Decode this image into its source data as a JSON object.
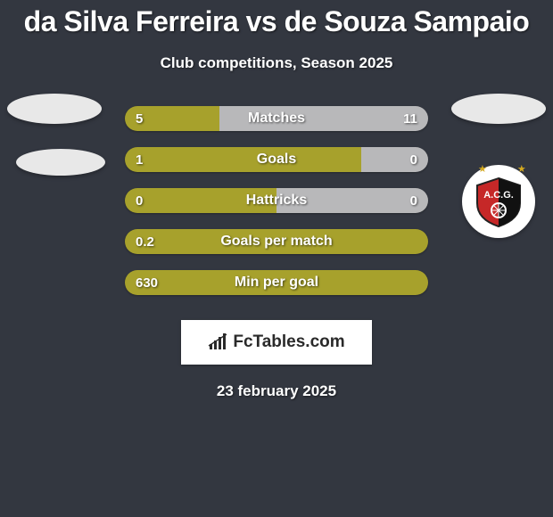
{
  "title": "da Silva Ferreira vs de Souza Sampaio",
  "subtitle": "Club competitions, Season 2025",
  "date": "23 february 2025",
  "logo_text": "FcTables.com",
  "colors": {
    "left": "#a7a12c",
    "right": "#b8b8ba",
    "background": "#333740"
  },
  "stats": [
    {
      "label": "Matches",
      "left_val": "5",
      "right_val": "11",
      "left_pct": 31.25,
      "right_pct": 68.75
    },
    {
      "label": "Goals",
      "left_val": "1",
      "right_val": "0",
      "left_pct": 78,
      "right_pct": 22
    },
    {
      "label": "Hattricks",
      "left_val": "0",
      "right_val": "0",
      "left_pct": 50,
      "right_pct": 50
    },
    {
      "label": "Goals per match",
      "left_val": "0.2",
      "right_val": "",
      "left_pct": 100,
      "right_pct": 0
    },
    {
      "label": "Min per goal",
      "left_val": "630",
      "right_val": "",
      "left_pct": 100,
      "right_pct": 0
    }
  ]
}
